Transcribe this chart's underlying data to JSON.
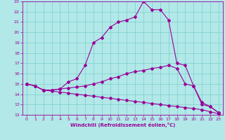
{
  "xlabel": "Windchill (Refroidissement éolien,°C)",
  "bg_color": "#b2e8e8",
  "grid_color": "#7ecece",
  "line_color": "#990099",
  "xlim": [
    -0.5,
    23.5
  ],
  "ylim": [
    12,
    23
  ],
  "x_ticks": [
    0,
    1,
    2,
    3,
    4,
    5,
    6,
    7,
    8,
    9,
    10,
    11,
    12,
    13,
    14,
    15,
    16,
    17,
    18,
    19,
    20,
    21,
    22,
    23
  ],
  "y_ticks": [
    12,
    13,
    14,
    15,
    16,
    17,
    18,
    19,
    20,
    21,
    22,
    23
  ],
  "curve1_x": [
    0,
    1,
    2,
    3,
    4,
    5,
    6,
    7,
    8,
    9,
    10,
    11,
    12,
    13,
    14,
    15,
    16,
    17,
    18,
    19,
    20,
    21,
    22,
    23
  ],
  "curve1_y": [
    15.0,
    14.8,
    14.4,
    14.4,
    14.5,
    15.2,
    15.5,
    16.8,
    19.0,
    19.5,
    20.5,
    21.0,
    21.2,
    21.5,
    23.0,
    22.2,
    22.2,
    21.2,
    17.0,
    16.8,
    14.8,
    13.0,
    12.8,
    12.2
  ],
  "curve2_x": [
    0,
    1,
    2,
    3,
    4,
    5,
    6,
    7,
    8,
    9,
    10,
    11,
    12,
    13,
    14,
    15,
    16,
    17,
    18,
    19,
    20,
    21,
    22,
    23
  ],
  "curve2_y": [
    15.0,
    14.8,
    14.4,
    14.4,
    14.5,
    14.6,
    14.7,
    14.8,
    15.0,
    15.2,
    15.5,
    15.7,
    16.0,
    16.2,
    16.3,
    16.5,
    16.6,
    16.8,
    16.5,
    15.0,
    14.8,
    13.2,
    12.8,
    12.2
  ],
  "curve3_x": [
    0,
    1,
    2,
    3,
    4,
    5,
    6,
    7,
    8,
    9,
    10,
    11,
    12,
    13,
    14,
    15,
    16,
    17,
    18,
    19,
    20,
    21,
    22,
    23
  ],
  "curve3_y": [
    15.0,
    14.8,
    14.4,
    14.3,
    14.2,
    14.1,
    14.0,
    13.9,
    13.8,
    13.7,
    13.6,
    13.5,
    13.4,
    13.3,
    13.2,
    13.1,
    13.0,
    12.9,
    12.8,
    12.7,
    12.6,
    12.5,
    12.3,
    12.1
  ],
  "marker": "D",
  "markersize": 2.0,
  "linewidth": 0.8,
  "tick_fontsize": 4.5,
  "xlabel_fontsize": 5.0
}
